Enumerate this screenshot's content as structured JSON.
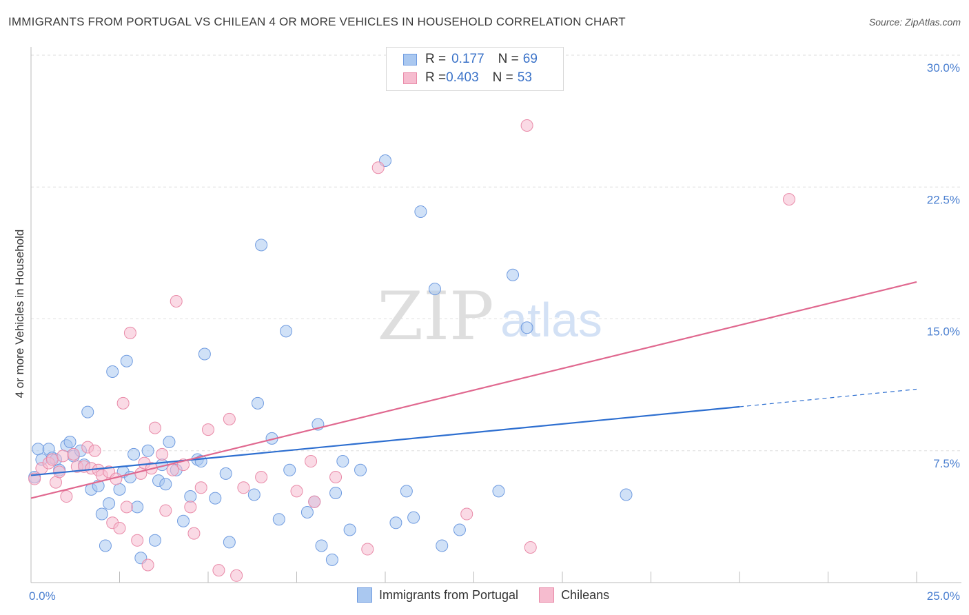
{
  "title": "IMMIGRANTS FROM PORTUGAL VS CHILEAN 4 OR MORE VEHICLES IN HOUSEHOLD CORRELATION CHART",
  "source": "Source: ZipAtlas.com",
  "watermark": {
    "zip": "ZIP",
    "atlas": "atlas"
  },
  "legend": {
    "rows": [
      {
        "r_label": "R = ",
        "r_value": "0.177",
        "n_label": "N = ",
        "n_value": "69"
      },
      {
        "r_label": "R = ",
        "r_value": "0.403",
        "n_label": "N = ",
        "n_value": "53"
      }
    ]
  },
  "colors": {
    "blue_fill": "#aac8f0",
    "blue_stroke": "#6f9be0",
    "blue_line": "#2e6fd0",
    "pink_fill": "#f6bccf",
    "pink_stroke": "#e98aa8",
    "pink_line": "#e0688f",
    "tick_text": "#4a7fd0",
    "grid": "#dddddd"
  },
  "chart_data": {
    "type": "scatter",
    "title": "IMMIGRANTS FROM PORTUGAL VS CHILEAN 4 OR MORE VEHICLES IN HOUSEHOLD CORRELATION CHART",
    "xlabel": "",
    "ylabel": "4 or more Vehicles in Household",
    "xlim": [
      0,
      25
    ],
    "ylim": [
      0,
      30
    ],
    "x_tick_labels": [
      "0.0%",
      "25.0%"
    ],
    "y_ticks": [
      7.5,
      15.0,
      22.5,
      30.0
    ],
    "y_tick_labels": [
      "7.5%",
      "15.0%",
      "22.5%",
      "30.0%"
    ],
    "grid": true,
    "legend_position": "bottom-center",
    "series": [
      {
        "name": "Immigrants from Portugal",
        "color": "#aac8f0",
        "trend": {
          "x0": 0,
          "y0": 6.1,
          "x1": 20,
          "y1": 10.0,
          "dashed_to_x": 25,
          "dashed_to_y": 11.0
        },
        "points": [
          [
            0.2,
            7.6
          ],
          [
            0.3,
            7.0
          ],
          [
            0.5,
            7.6
          ],
          [
            0.6,
            7.1
          ],
          [
            0.7,
            7.0
          ],
          [
            0.8,
            6.4
          ],
          [
            1.0,
            7.8
          ],
          [
            1.1,
            8.0
          ],
          [
            1.2,
            7.2
          ],
          [
            1.4,
            7.5
          ],
          [
            1.5,
            6.7
          ],
          [
            1.6,
            9.7
          ],
          [
            1.7,
            5.3
          ],
          [
            1.9,
            5.5
          ],
          [
            2.0,
            3.9
          ],
          [
            2.1,
            2.1
          ],
          [
            2.2,
            4.5
          ],
          [
            2.3,
            12.0
          ],
          [
            2.5,
            5.3
          ],
          [
            2.6,
            6.3
          ],
          [
            2.7,
            12.6
          ],
          [
            2.8,
            6.0
          ],
          [
            2.9,
            7.3
          ],
          [
            3.0,
            4.3
          ],
          [
            3.1,
            1.4
          ],
          [
            3.3,
            7.5
          ],
          [
            3.5,
            2.4
          ],
          [
            3.6,
            5.8
          ],
          [
            3.7,
            6.7
          ],
          [
            3.8,
            5.6
          ],
          [
            3.9,
            8.0
          ],
          [
            4.1,
            6.4
          ],
          [
            4.3,
            3.5
          ],
          [
            4.5,
            4.9
          ],
          [
            4.7,
            7.0
          ],
          [
            4.8,
            6.9
          ],
          [
            4.9,
            13.0
          ],
          [
            5.2,
            4.8
          ],
          [
            5.5,
            6.2
          ],
          [
            5.6,
            2.3
          ],
          [
            6.3,
            5.0
          ],
          [
            6.4,
            10.2
          ],
          [
            6.5,
            19.2
          ],
          [
            6.8,
            8.2
          ],
          [
            7.0,
            3.6
          ],
          [
            7.2,
            14.3
          ],
          [
            7.3,
            6.4
          ],
          [
            7.8,
            4.0
          ],
          [
            8.0,
            4.6
          ],
          [
            8.1,
            9.0
          ],
          [
            8.2,
            2.1
          ],
          [
            8.5,
            1.3
          ],
          [
            8.6,
            5.1
          ],
          [
            8.8,
            6.9
          ],
          [
            9.0,
            3.0
          ],
          [
            9.3,
            6.4
          ],
          [
            10.0,
            24.0
          ],
          [
            10.3,
            3.4
          ],
          [
            10.6,
            5.2
          ],
          [
            11.0,
            21.1
          ],
          [
            10.8,
            3.7
          ],
          [
            11.4,
            16.7
          ],
          [
            11.6,
            2.1
          ],
          [
            12.1,
            3.0
          ],
          [
            13.2,
            5.2
          ],
          [
            13.6,
            17.5
          ],
          [
            14.0,
            14.5
          ],
          [
            16.8,
            5.0
          ],
          [
            0.1,
            6.0
          ]
        ]
      },
      {
        "name": "Chileans",
        "color": "#f6bccf",
        "trend": {
          "x0": 0,
          "y0": 4.8,
          "x1": 25,
          "y1": 17.1
        },
        "points": [
          [
            0.1,
            5.9
          ],
          [
            0.3,
            6.5
          ],
          [
            0.5,
            6.8
          ],
          [
            0.6,
            7.0
          ],
          [
            0.7,
            5.7
          ],
          [
            0.8,
            6.3
          ],
          [
            0.9,
            7.2
          ],
          [
            1.0,
            4.9
          ],
          [
            1.2,
            7.3
          ],
          [
            1.3,
            6.6
          ],
          [
            1.5,
            6.6
          ],
          [
            1.6,
            7.7
          ],
          [
            1.7,
            6.5
          ],
          [
            1.8,
            7.5
          ],
          [
            1.9,
            6.4
          ],
          [
            2.0,
            6.1
          ],
          [
            2.2,
            6.3
          ],
          [
            2.3,
            3.4
          ],
          [
            2.4,
            5.9
          ],
          [
            2.5,
            3.1
          ],
          [
            2.6,
            10.2
          ],
          [
            2.7,
            4.3
          ],
          [
            2.8,
            14.2
          ],
          [
            3.0,
            2.4
          ],
          [
            3.1,
            6.2
          ],
          [
            3.2,
            6.8
          ],
          [
            3.3,
            1.0
          ],
          [
            3.4,
            6.5
          ],
          [
            3.5,
            8.8
          ],
          [
            3.7,
            7.3
          ],
          [
            3.8,
            4.1
          ],
          [
            4.0,
            6.4
          ],
          [
            4.1,
            16.0
          ],
          [
            4.3,
            6.7
          ],
          [
            4.5,
            4.3
          ],
          [
            4.6,
            2.8
          ],
          [
            4.8,
            5.4
          ],
          [
            5.0,
            8.7
          ],
          [
            5.3,
            0.7
          ],
          [
            5.6,
            9.3
          ],
          [
            5.8,
            0.4
          ],
          [
            6.0,
            5.4
          ],
          [
            6.5,
            6.0
          ],
          [
            7.5,
            5.2
          ],
          [
            7.9,
            6.9
          ],
          [
            8.0,
            4.6
          ],
          [
            8.6,
            6.0
          ],
          [
            9.5,
            1.9
          ],
          [
            9.8,
            23.6
          ],
          [
            12.3,
            3.9
          ],
          [
            14.0,
            26.0
          ],
          [
            14.1,
            2.0
          ],
          [
            21.4,
            21.8
          ]
        ]
      }
    ]
  },
  "bottom_legend": [
    "Immigrants from Portugal",
    "Chileans"
  ]
}
